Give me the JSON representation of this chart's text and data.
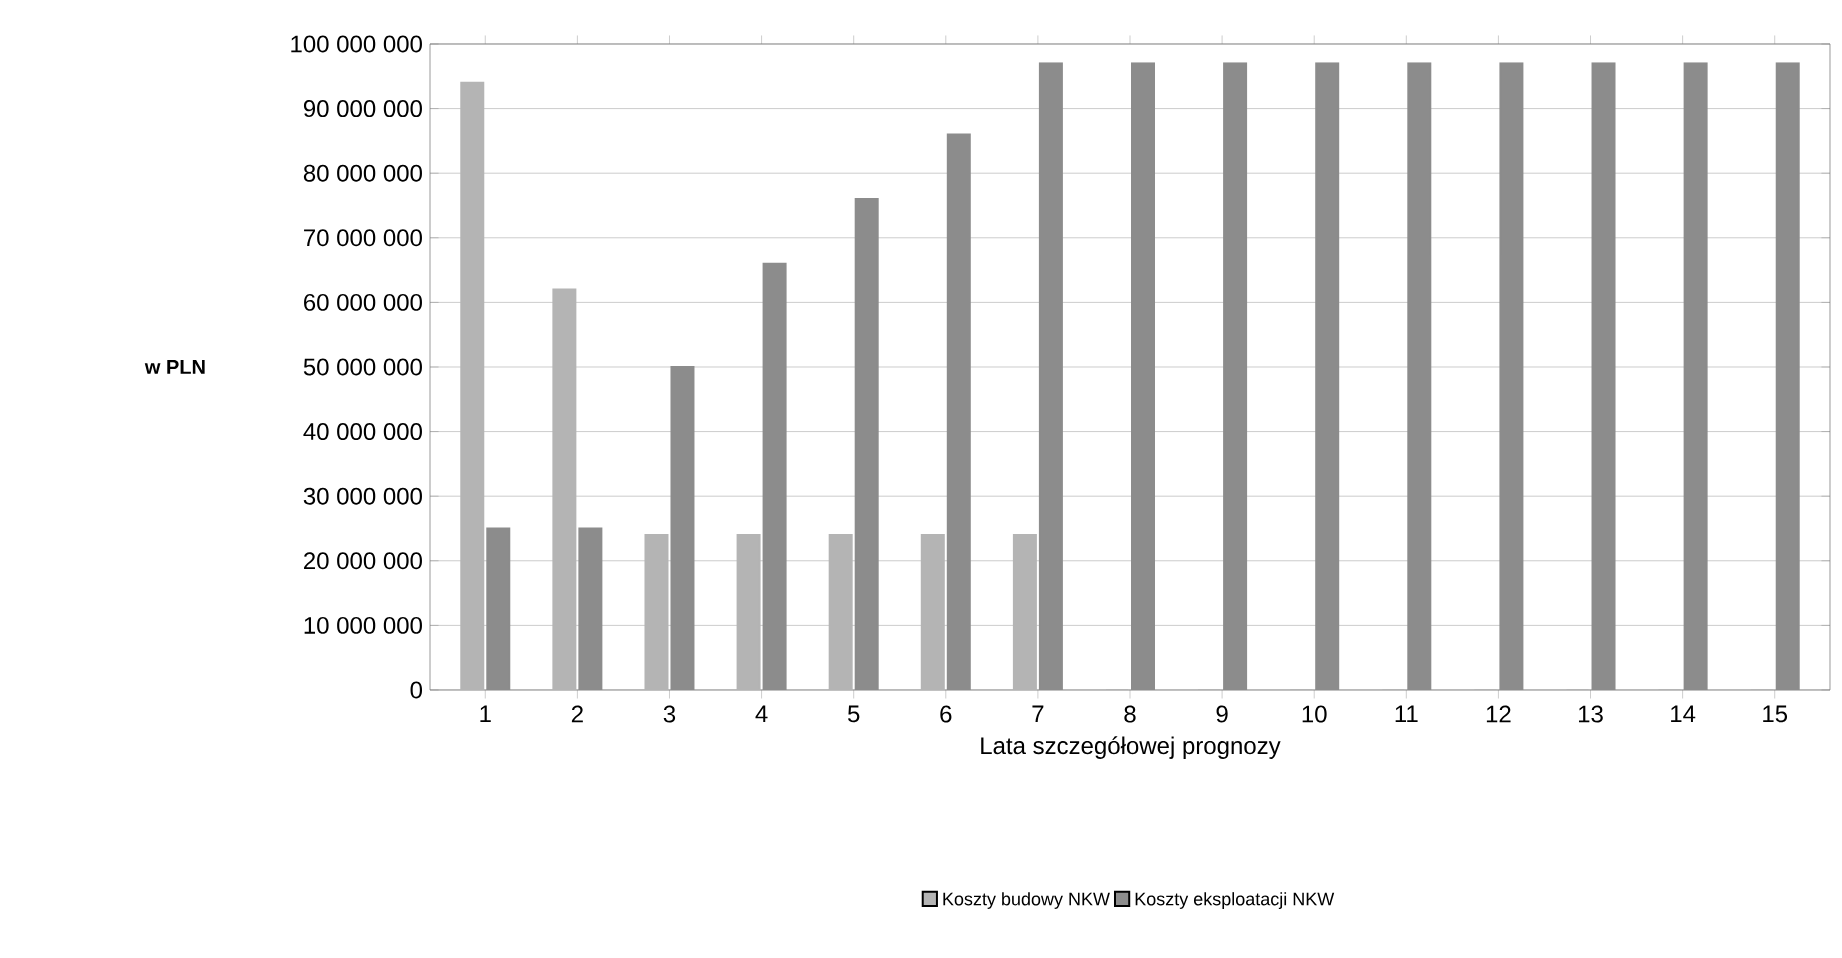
{
  "chart_data": {
    "type": "bar",
    "xlabel": "Lata szczegółowej prognozy",
    "ylabel": "w PLN",
    "categories": [
      "1",
      "2",
      "3",
      "4",
      "5",
      "6",
      "7",
      "8",
      "9",
      "10",
      "11",
      "12",
      "13",
      "14",
      "15"
    ],
    "series": [
      {
        "name": "Koszty budowy NKW",
        "color": "#b4b4b4",
        "values": [
          94000000,
          62000000,
          24000000,
          24000000,
          24000000,
          24000000,
          24000000,
          0,
          0,
          0,
          0,
          0,
          0,
          0,
          0
        ]
      },
      {
        "name": "Koszty eksploatacji NKW",
        "color": "#8c8c8c",
        "values": [
          25000000,
          25000000,
          50000000,
          66000000,
          76000000,
          86000000,
          97000000,
          97000000,
          97000000,
          97000000,
          97000000,
          97000000,
          97000000,
          97000000,
          97000000
        ]
      }
    ],
    "ylim": [
      0,
      100000000
    ],
    "yticks": [
      {
        "value": 0,
        "label": "0"
      },
      {
        "value": 10000000,
        "label": "10 000 000"
      },
      {
        "value": 20000000,
        "label": "20 000 000"
      },
      {
        "value": 30000000,
        "label": "30 000 000"
      },
      {
        "value": 40000000,
        "label": "40 000 000"
      },
      {
        "value": 50000000,
        "label": "50 000 000"
      },
      {
        "value": 60000000,
        "label": "60 000 000"
      },
      {
        "value": 70000000,
        "label": "70 000 000"
      },
      {
        "value": 80000000,
        "label": "80 000 000"
      },
      {
        "value": 90000000,
        "label": "90 000 000"
      },
      {
        "value": 100000000,
        "label": "100 000 000"
      }
    ],
    "grid": "y",
    "legend": "bottom"
  }
}
